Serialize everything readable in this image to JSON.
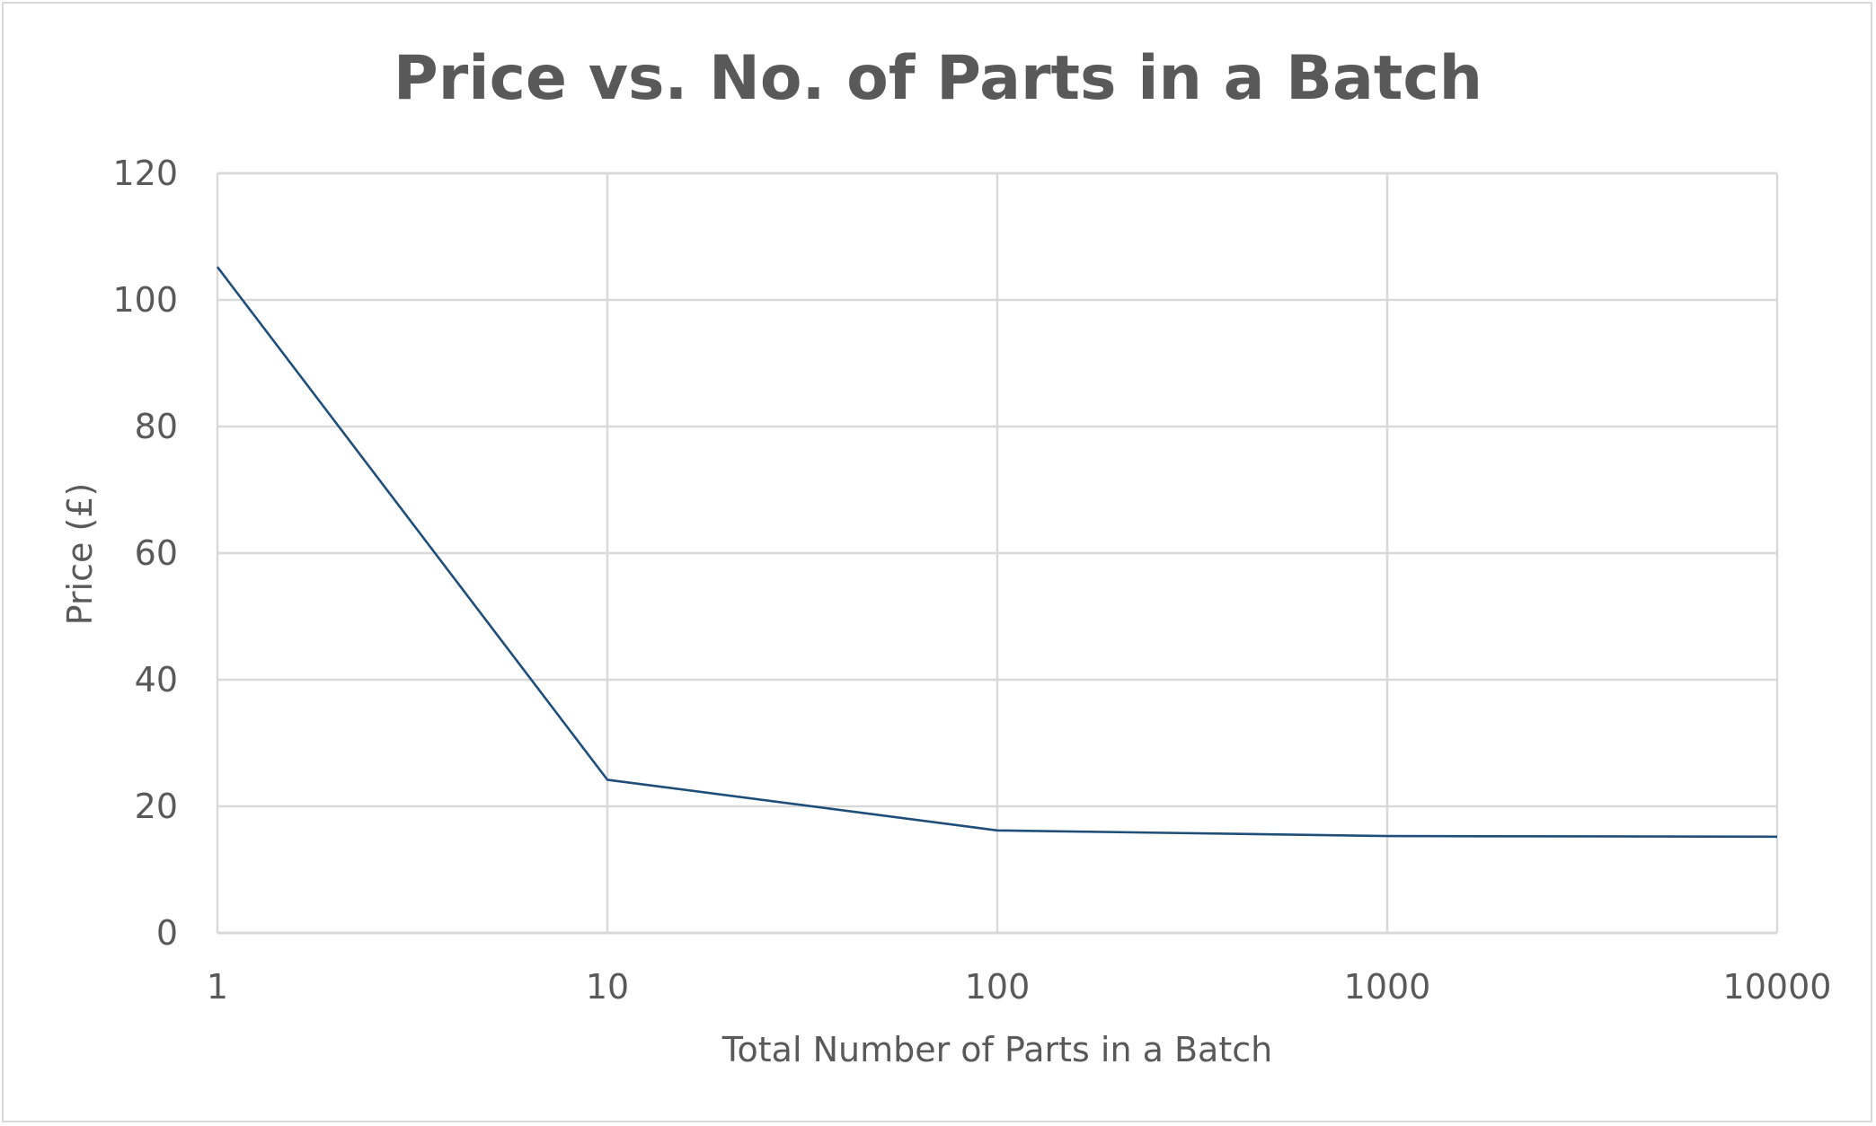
{
  "chart_data": {
    "type": "line",
    "title": "Price vs. No. of Parts in a Batch",
    "xlabel": "Total Number of Parts in a Batch",
    "ylabel": "Price (£)",
    "x_scale": "log",
    "x": [
      1,
      10,
      100,
      1000,
      10000
    ],
    "x_tick_labels": [
      "1",
      "10",
      "100",
      "1000",
      "10000"
    ],
    "y_ticks": [
      0,
      20,
      40,
      60,
      80,
      100,
      120
    ],
    "y_tick_labels": [
      "0",
      "20",
      "40",
      "60",
      "80",
      "100",
      "120"
    ],
    "xlim": [
      1,
      10000
    ],
    "ylim": [
      0,
      120
    ],
    "grid": true,
    "legend": "none",
    "series": [
      {
        "values": [
          105.2,
          24.2,
          16.2,
          15.3,
          15.2
        ],
        "color": "#1f4e79"
      }
    ]
  }
}
